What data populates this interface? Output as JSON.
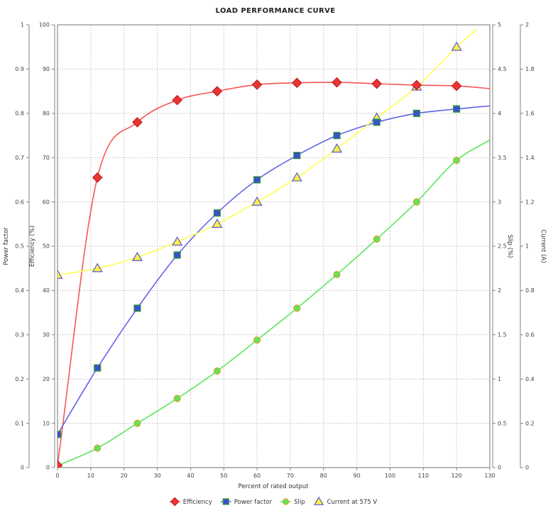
{
  "title": "LOAD PERFORMANCE CURVE",
  "chart_data": {
    "type": "line",
    "title": "LOAD PERFORMANCE CURVE",
    "xlabel": "Percent of rated output",
    "x_axis": {
      "label": "Percent of rated output",
      "min": 0,
      "max": 130,
      "tick_step": 10
    },
    "axes": {
      "power_factor": {
        "label": "Power factor",
        "min": 0,
        "max": 1,
        "tick_step": 0.1,
        "side": "left-outer"
      },
      "efficiency": {
        "label": "Efficiency (%)",
        "min": 0,
        "max": 100,
        "tick_step": 10,
        "side": "left-inner"
      },
      "slip": {
        "label": "Slip (%)",
        "min": 0,
        "max": 5,
        "tick_step": 0.5,
        "side": "right-inner"
      },
      "current": {
        "label": "Current (A)",
        "min": 0,
        "max": 2,
        "tick_step": 0.2,
        "side": "right-outer"
      }
    },
    "x": [
      0,
      12,
      24,
      36,
      48,
      60,
      72,
      84,
      96,
      108,
      120
    ],
    "series": [
      {
        "name": "Efficiency",
        "axis": "efficiency",
        "marker": "diamond",
        "line_color": "#f85555",
        "fill": "#ee3434",
        "stroke": "#bb2020",
        "values": [
          0.5,
          65.5,
          78,
          83,
          85,
          86.5,
          86.9,
          87,
          86.7,
          86.4,
          86.2
        ],
        "line_extend": {
          "x": 130,
          "value": 85.6
        }
      },
      {
        "name": "Power factor",
        "axis": "power_factor",
        "marker": "square",
        "line_color": "#6464e8",
        "fill": "#3d4fd0",
        "stroke": "#2f9e2f",
        "values": [
          0.075,
          0.225,
          0.36,
          0.48,
          0.575,
          0.65,
          0.705,
          0.75,
          0.78,
          0.8,
          0.81
        ],
        "line_extend": {
          "x": 130,
          "value": 0.817
        }
      },
      {
        "name": "Slip",
        "axis": "slip",
        "marker": "circle",
        "line_color": "#5ce65c",
        "fill": "#5ce65c",
        "stroke": "#dfa030",
        "values": [
          0.02,
          0.22,
          0.5,
          0.78,
          1.09,
          1.44,
          1.8,
          2.18,
          2.58,
          3.0,
          3.47
        ],
        "line_extend": {
          "x": 130,
          "value": 3.7
        }
      },
      {
        "name": "Current at 575 V",
        "axis": "current",
        "marker": "triangle",
        "line_color": "#ffff52",
        "fill": "#fff045",
        "stroke": "#5858d8",
        "values": [
          0.87,
          0.9,
          0.95,
          1.02,
          1.1,
          1.2,
          1.31,
          1.44,
          1.58,
          1.72,
          1.9
        ],
        "line_extend": {
          "x": 126,
          "value": 1.98
        }
      }
    ],
    "legend": [
      "Efficiency",
      "Power factor",
      "Slip",
      "Current at 575 V"
    ],
    "legend_position": "bottom",
    "grid": true,
    "style": {
      "grid_color": "#bdbdbd",
      "axis_color": "#808080",
      "border_color": "#8a8a8a",
      "text_color": "#333333",
      "background": "#ffffff"
    }
  }
}
